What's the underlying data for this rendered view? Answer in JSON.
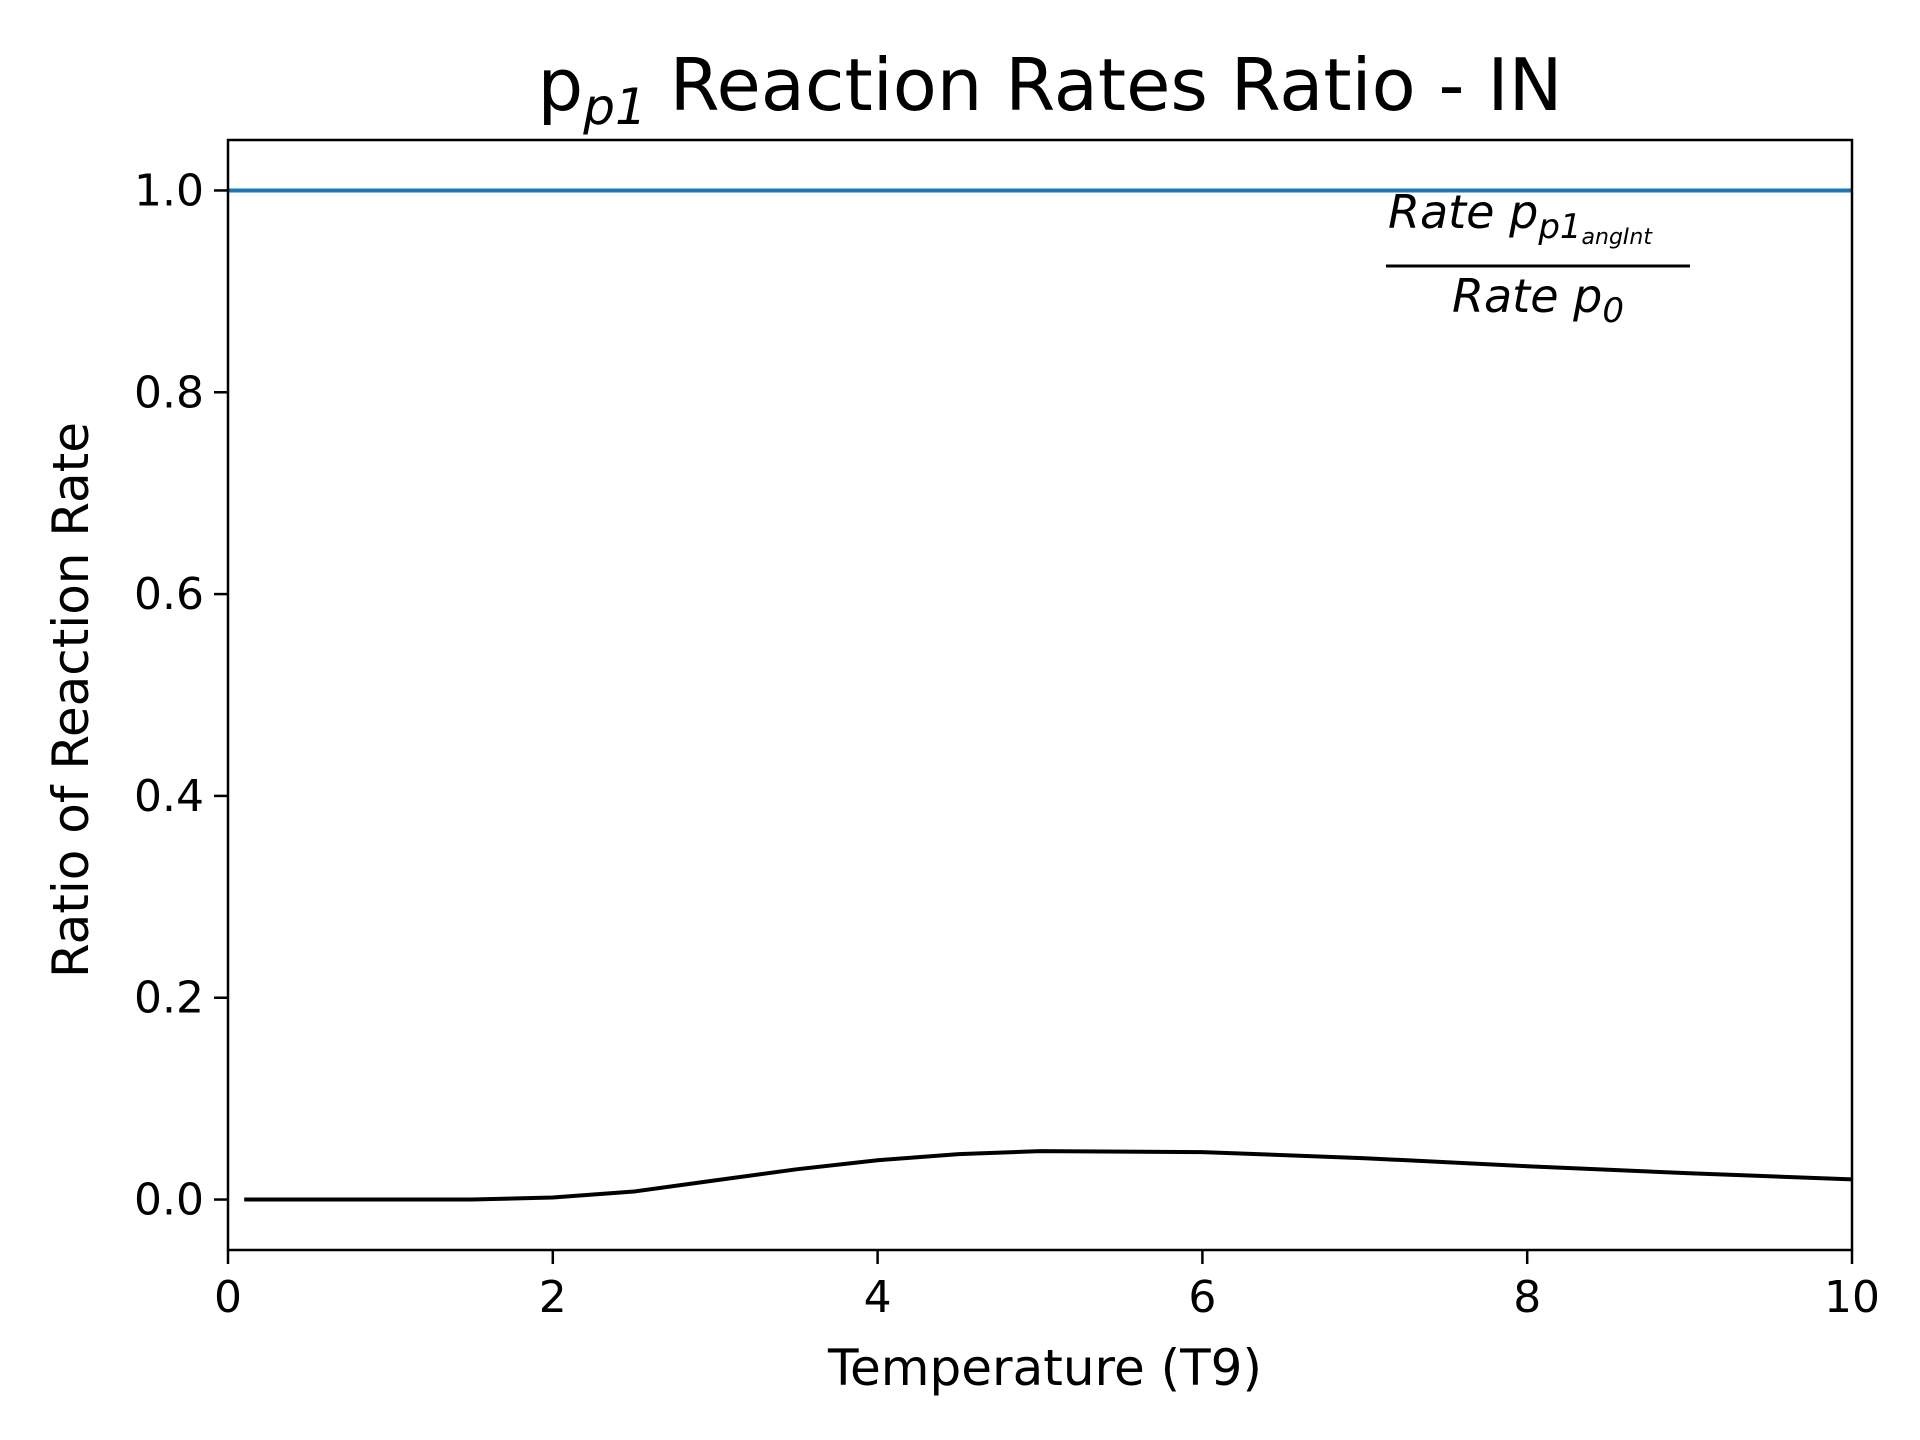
{
  "chart_data": {
    "type": "line",
    "title": {
      "base": "p",
      "subscript": "p1",
      "rest": " Reaction Rates Ratio - IN"
    },
    "xlabel": "Temperature (T9)",
    "ylabel": "Ratio of Reaction Rate",
    "xlim": [
      0,
      10
    ],
    "ylim": [
      -0.05,
      1.05
    ],
    "xticks": [
      0,
      2,
      4,
      6,
      8,
      10
    ],
    "xtick_labels": [
      "0",
      "2",
      "4",
      "6",
      "8",
      "10"
    ],
    "yticks": [
      0.0,
      0.2,
      0.4,
      0.6,
      0.8,
      1.0
    ],
    "ytick_labels": [
      "0.0",
      "0.2",
      "0.4",
      "0.6",
      "0.8",
      "1.0"
    ],
    "grid": false,
    "annotation": {
      "numerator": {
        "text": "Rate p",
        "subscript": "p1",
        "subsubscript": "angInt"
      },
      "denominator": {
        "text": "Rate p",
        "subscript": "0"
      }
    },
    "series": [
      {
        "color": "#1f77b4",
        "x": [
          0,
          10
        ],
        "y": [
          1.0,
          1.0
        ]
      },
      {
        "color": "#000000",
        "x": [
          0.1,
          0.5,
          1.0,
          1.5,
          2.0,
          2.5,
          3.0,
          3.5,
          4.0,
          4.5,
          5.0,
          6.0,
          7.0,
          8.0,
          9.0,
          10.0
        ],
        "y": [
          0.0,
          0.0,
          0.0,
          0.0,
          0.002,
          0.008,
          0.019,
          0.03,
          0.039,
          0.045,
          0.048,
          0.047,
          0.041,
          0.033,
          0.026,
          0.02
        ]
      }
    ]
  }
}
